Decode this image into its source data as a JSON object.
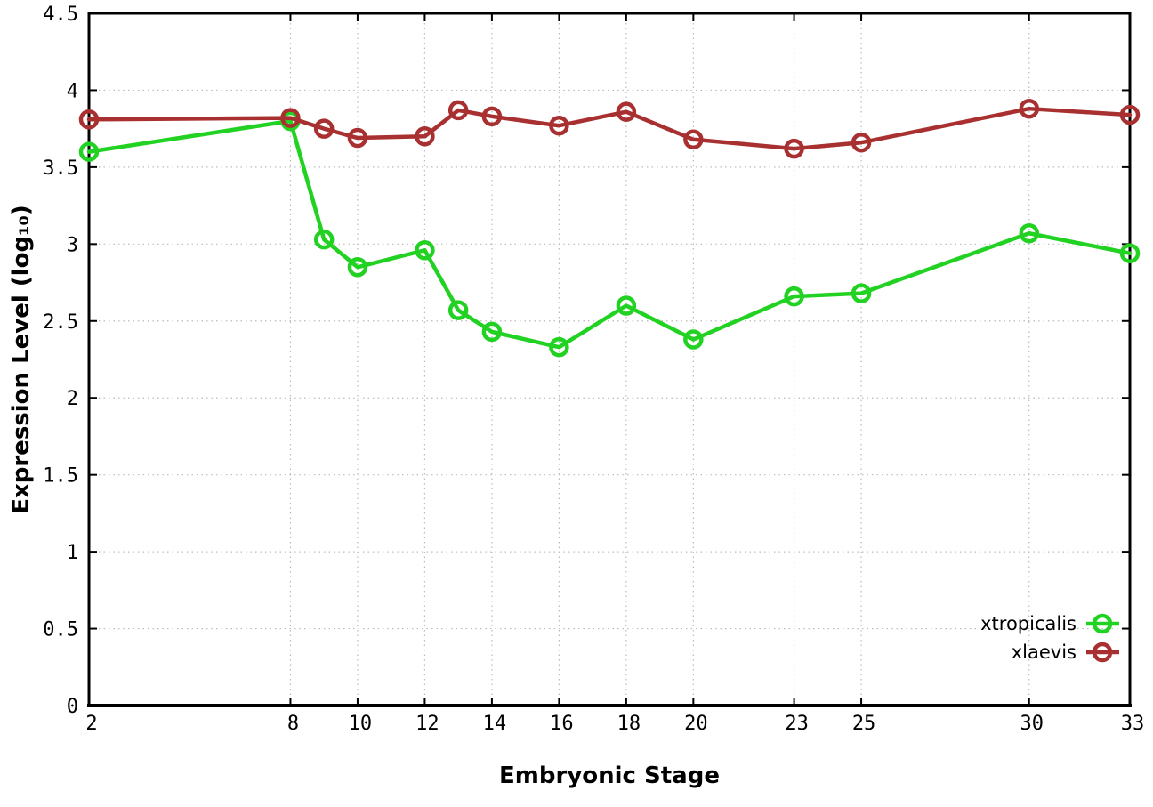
{
  "chart_data": {
    "type": "line",
    "title": "",
    "xlabel": "Embryonic Stage",
    "ylabel": "Expression Level (log₁₀)",
    "xlim": [
      2,
      33
    ],
    "ylim": [
      0,
      4.5
    ],
    "x_ticks": [
      2,
      8,
      10,
      12,
      14,
      16,
      18,
      20,
      23,
      25,
      30,
      33
    ],
    "y_ticks": [
      0,
      0.5,
      1,
      1.5,
      2,
      2.5,
      3,
      3.5,
      4,
      4.5
    ],
    "grid": true,
    "legend_position": "bottom-right",
    "marker": "open-circle",
    "x": [
      2,
      8,
      9,
      10,
      12,
      13,
      14,
      16,
      18,
      20,
      23,
      25,
      30,
      33
    ],
    "series": [
      {
        "name": "xtropicalis",
        "color": "#22d222",
        "values": [
          3.6,
          3.8,
          3.03,
          2.85,
          2.96,
          2.57,
          2.43,
          2.33,
          2.6,
          2.38,
          2.66,
          2.68,
          3.07,
          2.94
        ]
      },
      {
        "name": "xlaevis",
        "color": "#a93030",
        "values": [
          3.81,
          3.82,
          3.75,
          3.69,
          3.7,
          3.87,
          3.83,
          3.77,
          3.86,
          3.68,
          3.62,
          3.66,
          3.88,
          3.84
        ]
      }
    ],
    "colors": {
      "grid": "#bbbbbb",
      "border": "#000000",
      "background": "#ffffff"
    }
  }
}
